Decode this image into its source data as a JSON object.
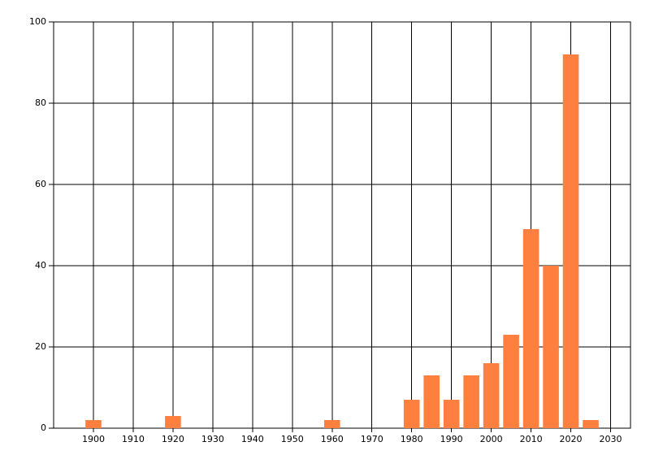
{
  "chart_data": {
    "type": "bar",
    "x": [
      1900,
      1920,
      1960,
      1980,
      1985,
      1990,
      1995,
      2000,
      2005,
      2010,
      2015,
      2020,
      2025
    ],
    "values": [
      2,
      3,
      2,
      7,
      13,
      7,
      13,
      16,
      23,
      49,
      40,
      92,
      2
    ],
    "color": "#ff7f3f",
    "xlim": [
      1890,
      2035
    ],
    "xticks": [
      1900,
      1910,
      1920,
      1930,
      1940,
      1950,
      1960,
      1970,
      1980,
      1990,
      2000,
      2010,
      2020,
      2030
    ],
    "ylim": [
      0,
      100
    ],
    "yticks": [
      0,
      20,
      40,
      60,
      80,
      100
    ],
    "grid": true
  }
}
